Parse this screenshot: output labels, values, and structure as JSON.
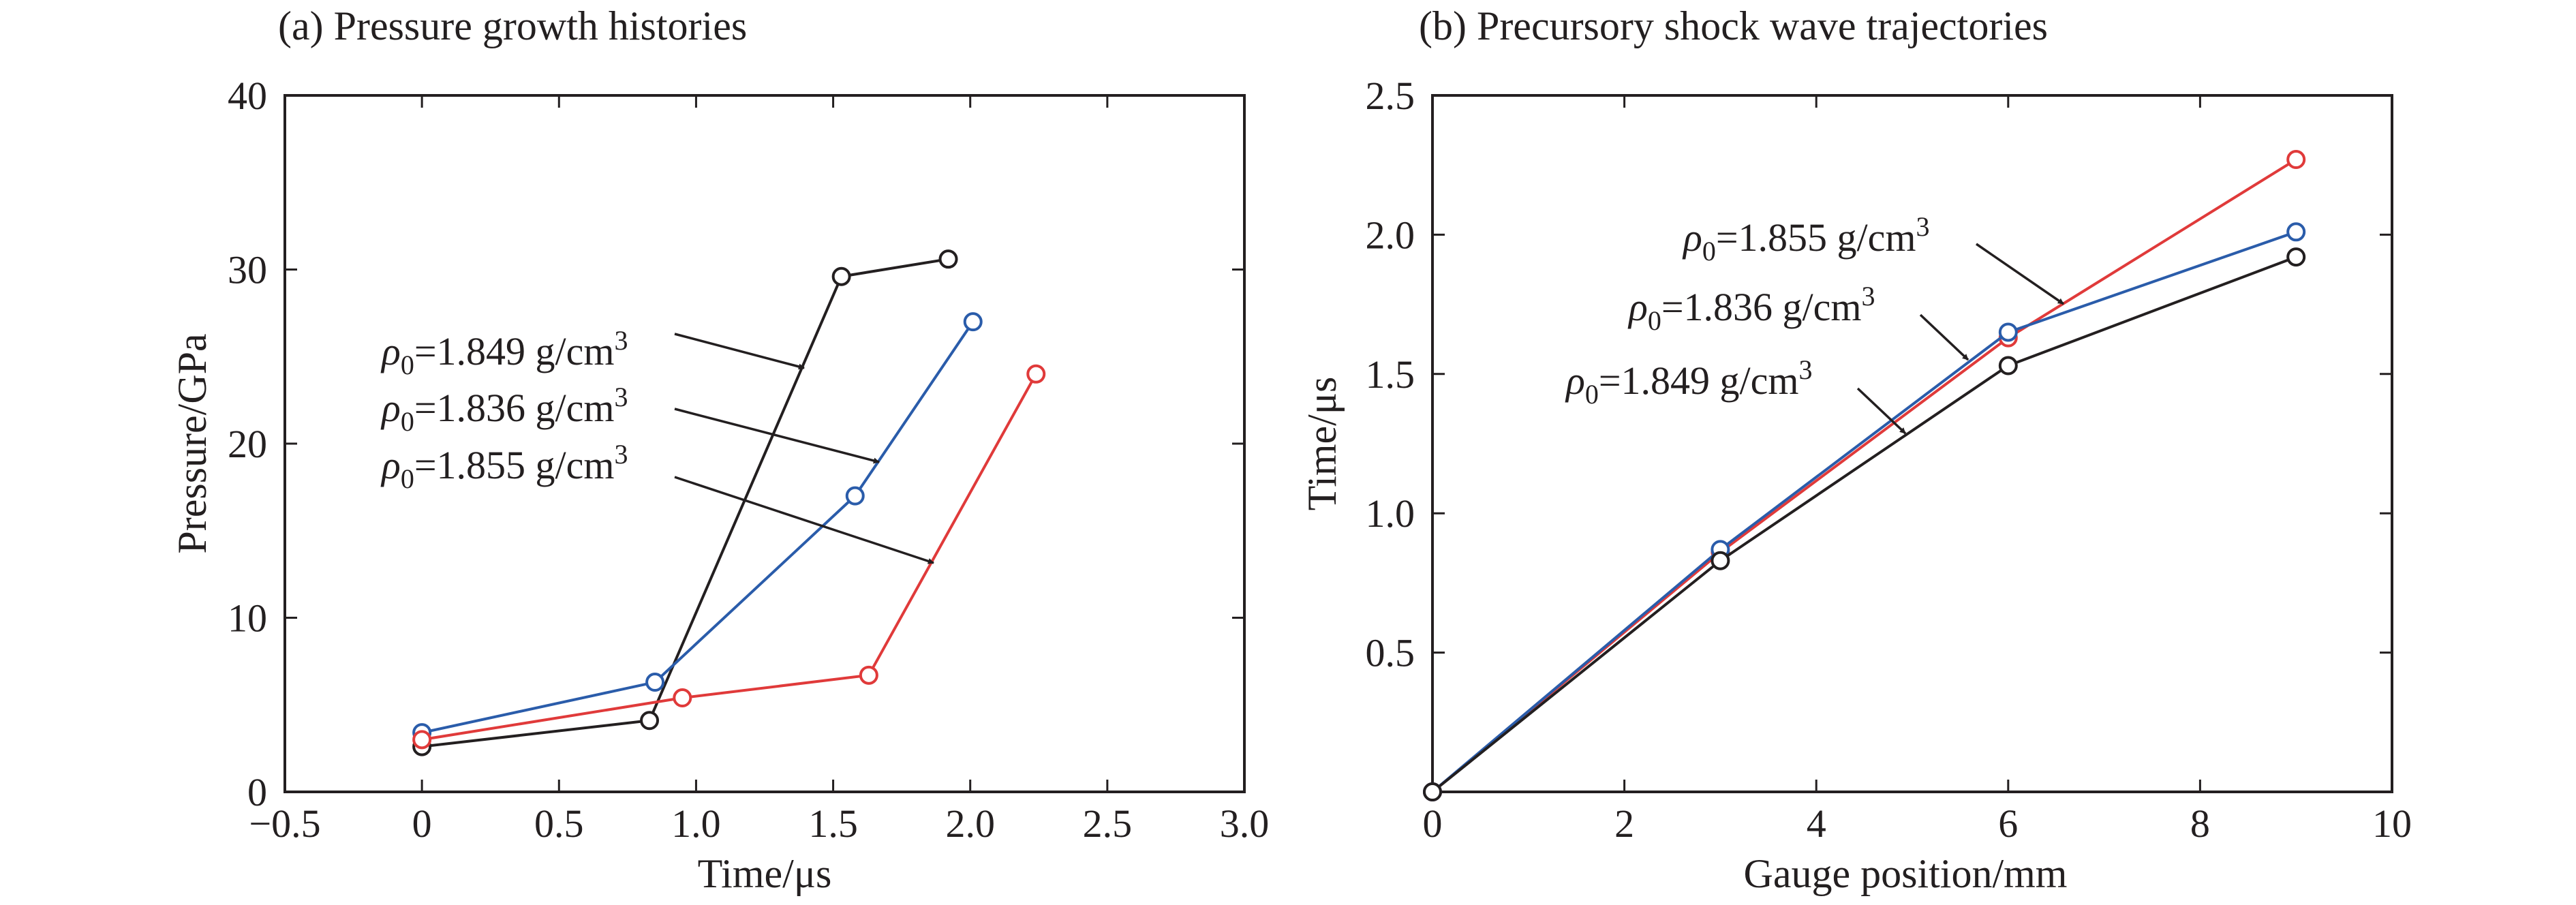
{
  "figure": {
    "panels": [
      "(a) Pressure growth histories",
      "(b) Precursory shock wave trajectories"
    ]
  },
  "chart_data": [
    {
      "type": "line",
      "title": "(a) Pressure growth histories",
      "xlabel": "Time/μs",
      "ylabel": "Pressure/GPa",
      "xlim": [
        -0.5,
        3.0
      ],
      "ylim": [
        0,
        40
      ],
      "xticks": [
        -0.5,
        0,
        0.5,
        1.0,
        1.5,
        2.0,
        2.5,
        3.0
      ],
      "xtick_labels": [
        "−0.5",
        "0",
        "0.5",
        "1.0",
        "1.5",
        "2.0",
        "2.5",
        "3.0"
      ],
      "yticks": [
        0,
        10,
        20,
        30,
        40
      ],
      "ytick_labels": [
        "0",
        "10",
        "20",
        "30",
        "40"
      ],
      "grid": false,
      "series": [
        {
          "name": "ρ0=1.849 g/cm3",
          "color": "#231f20",
          "x": [
            0,
            0.83,
            1.53,
            1.92
          ],
          "y": [
            2.6,
            4.1,
            29.6,
            30.6
          ]
        },
        {
          "name": "ρ0=1.836 g/cm3",
          "color": "#2a5caa",
          "x": [
            0,
            0.85,
            1.58,
            2.01
          ],
          "y": [
            3.4,
            6.3,
            17.0,
            27.0
          ]
        },
        {
          "name": "ρ0=1.855 g/cm3",
          "color": "#e03a3a",
          "x": [
            0,
            0.95,
            1.63,
            2.24
          ],
          "y": [
            3.0,
            5.4,
            6.7,
            24.0
          ]
        }
      ],
      "annotations": [
        {
          "series": 0,
          "rho": "ρ",
          "sub": "0",
          "text": "=1.849 g/cm",
          "sup": "3"
        },
        {
          "series": 1,
          "rho": "ρ",
          "sub": "0",
          "text": "=1.836 g/cm",
          "sup": "3"
        },
        {
          "series": 2,
          "rho": "ρ",
          "sub": "0",
          "text": "=1.855 g/cm",
          "sup": "3"
        }
      ]
    },
    {
      "type": "line",
      "title": "(b) Precursory shock wave trajectories",
      "xlabel": "Gauge position/mm",
      "ylabel": "Time/μs",
      "xlim": [
        0,
        10
      ],
      "ylim": [
        0,
        2.5
      ],
      "xticks": [
        0,
        2,
        4,
        6,
        8,
        10
      ],
      "xtick_labels": [
        "0",
        "2",
        "4",
        "6",
        "8",
        "10"
      ],
      "yticks": [
        0.5,
        1.0,
        1.5,
        2.0,
        2.5
      ],
      "ytick_labels": [
        "0.5",
        "1.0",
        "1.5",
        "2.0",
        "2.5"
      ],
      "grid": false,
      "series": [
        {
          "name": "ρ0=1.855 g/cm3",
          "color": "#e03a3a",
          "x": [
            0,
            3,
            6,
            9
          ],
          "y": [
            0,
            0.86,
            1.63,
            2.27
          ]
        },
        {
          "name": "ρ0=1.836 g/cm3",
          "color": "#2a5caa",
          "x": [
            0,
            3,
            6,
            9
          ],
          "y": [
            0,
            0.87,
            1.65,
            2.01
          ]
        },
        {
          "name": "ρ0=1.849 g/cm3",
          "color": "#231f20",
          "x": [
            0,
            3,
            6,
            9
          ],
          "y": [
            0,
            0.83,
            1.53,
            1.92
          ]
        }
      ],
      "annotations": [
        {
          "series": 0,
          "rho": "ρ",
          "sub": "0",
          "text": "=1.855 g/cm",
          "sup": "3"
        },
        {
          "series": 1,
          "rho": "ρ",
          "sub": "0",
          "text": "=1.836 g/cm",
          "sup": "3"
        },
        {
          "series": 2,
          "rho": "ρ",
          "sub": "0",
          "text": "=1.849 g/cm",
          "sup": "3"
        }
      ]
    }
  ]
}
